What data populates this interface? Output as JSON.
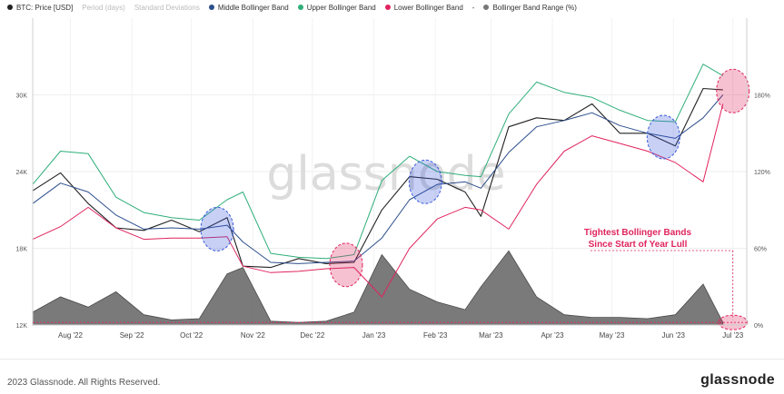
{
  "legend": [
    {
      "label": "BTC: Price [USD]",
      "color": "#222222",
      "muted": false
    },
    {
      "label": "Period (days)",
      "color": "",
      "muted": true
    },
    {
      "label": "Standard Deviations",
      "color": "",
      "muted": true
    },
    {
      "label": "Middle Bollinger Band",
      "color": "#2b4d8c",
      "muted": false
    },
    {
      "label": "Upper Bollinger Band",
      "color": "#2fae7a",
      "muted": false
    },
    {
      "label": "Lower Bollinger Band",
      "color": "#e0245e",
      "muted": false
    },
    {
      "label": "-",
      "color": "",
      "muted": false
    },
    {
      "label": "Bollinger Band Range (%)",
      "color": "#777777",
      "muted": false
    }
  ],
  "footer": {
    "copyright": "2023 Glassnode. All Rights Reserved.",
    "brand": "glassnode"
  },
  "watermark": "glassnode",
  "chart_data": {
    "type": "line",
    "x": [
      "2022-07-27",
      "2022-08-10",
      "2022-08-24",
      "2022-09-07",
      "2022-09-21",
      "2022-10-05",
      "2022-10-19",
      "2022-11-02",
      "2022-11-10",
      "2022-11-24",
      "2022-12-08",
      "2022-12-22",
      "2023-01-05",
      "2023-01-19",
      "2023-02-02",
      "2023-02-16",
      "2023-03-02",
      "2023-03-10",
      "2023-03-24",
      "2023-04-07",
      "2023-04-21",
      "2023-05-05",
      "2023-05-19",
      "2023-06-02",
      "2023-06-16",
      "2023-06-30",
      "2023-07-10"
    ],
    "series": [
      {
        "name": "BTC: Price [USD]",
        "axis": "left",
        "color": "#222222",
        "values": [
          22500,
          23900,
          21500,
          19600,
          19400,
          20200,
          19300,
          20400,
          16600,
          16500,
          17200,
          16800,
          16900,
          21000,
          23600,
          23400,
          22400,
          20500,
          27500,
          28200,
          28000,
          29300,
          27000,
          27000,
          26000,
          30500,
          30400
        ]
      },
      {
        "name": "Middle Bollinger Band",
        "axis": "left",
        "color": "#2b4d8c",
        "values": [
          21500,
          23100,
          22400,
          20600,
          19500,
          19600,
          19500,
          19800,
          18500,
          16900,
          16800,
          16900,
          17000,
          18800,
          21800,
          23000,
          23200,
          22700,
          25500,
          27500,
          28000,
          28600,
          27600,
          27000,
          26600,
          28200,
          30000
        ]
      },
      {
        "name": "Upper Bollinger Band",
        "axis": "left",
        "color": "#2fae7a",
        "values": [
          23000,
          25600,
          25400,
          22000,
          20800,
          20400,
          20200,
          21800,
          22400,
          17600,
          17300,
          17200,
          17500,
          23300,
          25200,
          24000,
          23700,
          23600,
          28500,
          31000,
          30200,
          29800,
          28800,
          28000,
          27900,
          32400,
          31500
        ]
      },
      {
        "name": "Lower Bollinger Band",
        "axis": "left",
        "color": "#e0245e",
        "values": [
          18700,
          19700,
          21200,
          19600,
          18700,
          18800,
          18800,
          18900,
          16600,
          16100,
          16200,
          16400,
          16500,
          14200,
          18000,
          20300,
          21200,
          21000,
          19500,
          23000,
          25600,
          26800,
          26200,
          25600,
          24700,
          23200,
          29300
        ]
      },
      {
        "name": "Bollinger Band Range (%)",
        "axis": "right",
        "color": "#777777",
        "values": [
          10,
          22,
          14,
          26,
          8,
          4,
          5,
          40,
          45,
          3,
          2,
          3,
          10,
          55,
          28,
          18,
          12,
          30,
          58,
          22,
          8,
          6,
          6,
          5,
          8,
          32,
          2
        ]
      }
    ],
    "y_left": {
      "ticks": [
        12000,
        18000,
        24000,
        30000
      ],
      "tick_labels": [
        "12K",
        "18K",
        "24K",
        "30K"
      ],
      "range": [
        12000,
        36000
      ]
    },
    "y_right": {
      "ticks": [
        0,
        60,
        120,
        180
      ],
      "tick_labels": [
        "0%",
        "60%",
        "120%",
        "180%"
      ],
      "range": [
        0,
        240
      ]
    },
    "x_ticks": [
      {
        "date": "2022-08-15",
        "label": "Aug '22"
      },
      {
        "date": "2022-09-15",
        "label": "Sep '22"
      },
      {
        "date": "2022-10-15",
        "label": "Oct '22"
      },
      {
        "date": "2022-11-15",
        "label": "Nov '22"
      },
      {
        "date": "2022-12-15",
        "label": "Dec '22"
      },
      {
        "date": "2023-01-15",
        "label": "Jan '23"
      },
      {
        "date": "2023-02-15",
        "label": "Feb '23"
      },
      {
        "date": "2023-03-15",
        "label": "Mar '23"
      },
      {
        "date": "2023-04-15",
        "label": "Apr '23"
      },
      {
        "date": "2023-05-15",
        "label": "May '23"
      },
      {
        "date": "2023-06-15",
        "label": "Jun '23"
      },
      {
        "date": "2023-07-15",
        "label": "Jul '23"
      }
    ],
    "x_range": [
      "2022-07-27",
      "2023-07-22"
    ],
    "grid": true,
    "annotations": {
      "text": [
        "Tightest Bollinger Bands",
        "Since Start of Year Lull"
      ],
      "color": "#e0245e",
      "highlights": [
        {
          "date": "2022-10-28",
          "price": 19500,
          "color": "#3b5bdb"
        },
        {
          "date": "2023-01-01",
          "price": 16700,
          "color": "#e0245e"
        },
        {
          "date": "2023-02-10",
          "price": 23200,
          "color": "#3b5bdb"
        },
        {
          "date": "2023-06-10",
          "price": 26700,
          "color": "#3b5bdb"
        },
        {
          "date": "2023-07-15",
          "price": 30300,
          "color": "#e0245e"
        },
        {
          "date": "2023-07-15",
          "range_pct": 2,
          "color": "#e0245e"
        }
      ]
    }
  }
}
